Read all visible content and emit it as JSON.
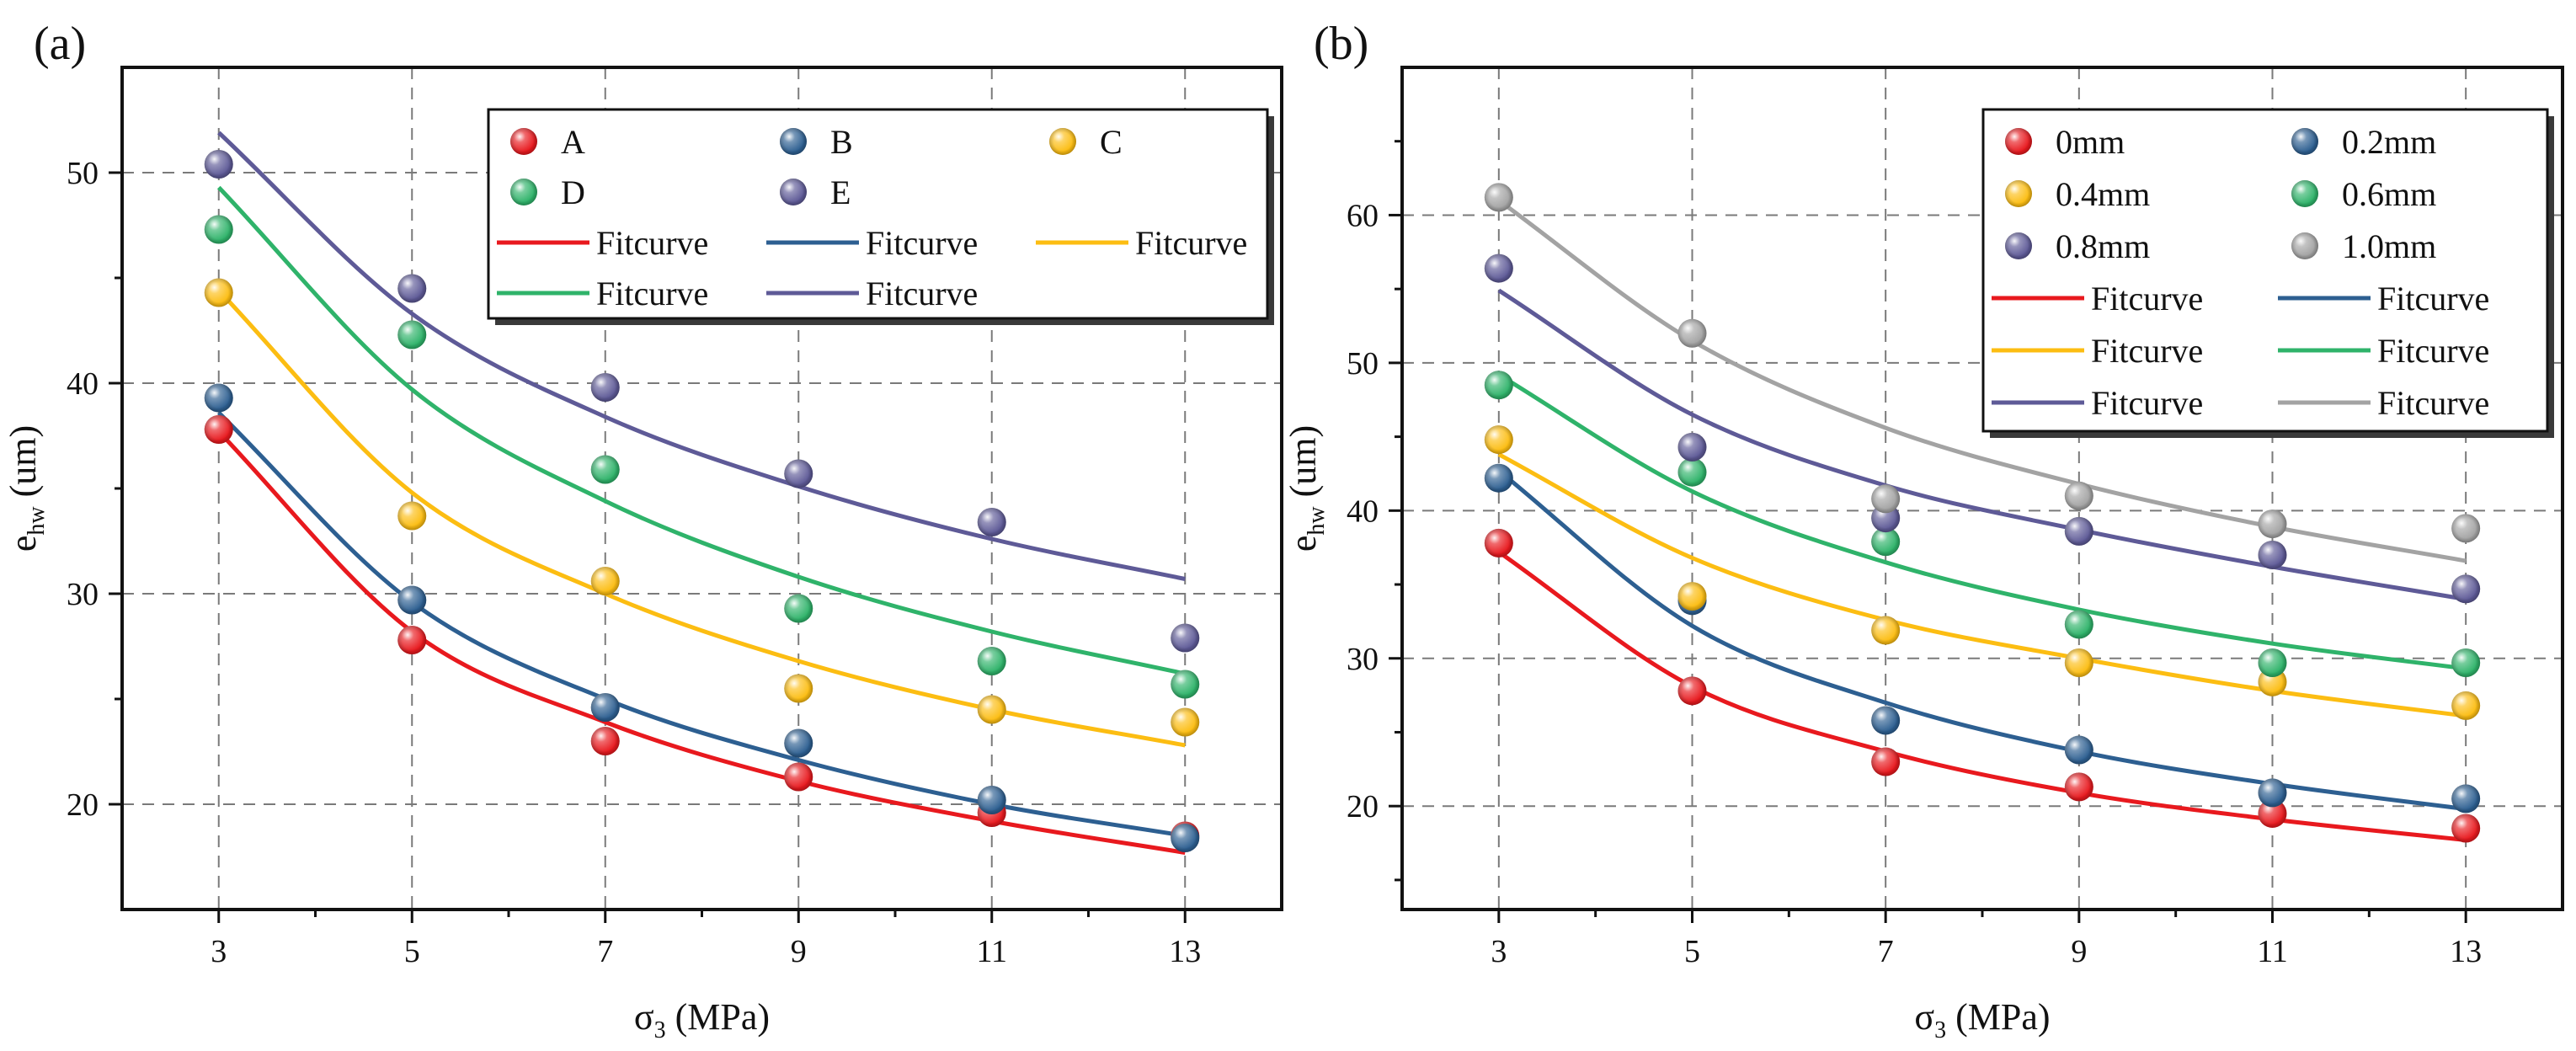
{
  "colors": {
    "red": "#e8191e",
    "blue": "#2d5f91",
    "yellow": "#fcbd12",
    "green": "#2fb36a",
    "purple": "#5e5a97",
    "gray": "#a3a3a3"
  },
  "chart_data": [
    {
      "type": "scatter",
      "panel_label": "(a)",
      "xlabel": "σ",
      "xlabel_sub": "3",
      "xlabel_unit": " (MPa)",
      "ylabel": "e",
      "ylabel_sub": "hw",
      "ylabel_unit": " (um)",
      "xlim": [
        2,
        14
      ],
      "ylim": [
        15,
        55
      ],
      "xticks": [
        3,
        5,
        7,
        9,
        11,
        13
      ],
      "yticks": [
        20,
        30,
        40,
        50
      ],
      "grid": true,
      "legend_placement": "top-right",
      "legend_columns": 3,
      "x": [
        3,
        5,
        7,
        9,
        11,
        13
      ],
      "series": [
        {
          "name": "A",
          "color_key": "red",
          "values": [
            37.8,
            27.8,
            23.0,
            21.3,
            19.6,
            18.5
          ],
          "fit": [
            37.7,
            28.2,
            23.9,
            21.1,
            19.2,
            17.7
          ]
        },
        {
          "name": "B",
          "color_key": "blue",
          "values": [
            39.3,
            29.7,
            24.6,
            22.9,
            20.2,
            18.4
          ],
          "fit": [
            38.6,
            29.6,
            25.0,
            22.1,
            20.0,
            18.5
          ]
        },
        {
          "name": "C",
          "color_key": "yellow",
          "values": [
            44.3,
            33.7,
            30.6,
            25.5,
            24.5,
            23.9
          ],
          "fit": [
            44.4,
            34.8,
            30.0,
            26.8,
            24.5,
            22.8
          ]
        },
        {
          "name": "D",
          "color_key": "green",
          "values": [
            47.3,
            42.3,
            35.9,
            29.3,
            26.8,
            25.7
          ],
          "fit": [
            49.3,
            39.7,
            34.4,
            30.8,
            28.2,
            26.2
          ]
        },
        {
          "name": "E",
          "color_key": "purple",
          "values": [
            50.4,
            44.5,
            39.8,
            35.7,
            33.4,
            27.9
          ],
          "fit": [
            51.9,
            43.3,
            38.4,
            35.1,
            32.6,
            30.7
          ]
        }
      ],
      "fit_label": "Fitcurve"
    },
    {
      "type": "scatter",
      "panel_label": "(b)",
      "xlabel": "σ",
      "xlabel_sub": "3",
      "xlabel_unit": " (MPa)",
      "ylabel": "e",
      "ylabel_sub": "hw",
      "ylabel_unit": " (um)",
      "xlim": [
        2,
        14
      ],
      "ylim": [
        13,
        70
      ],
      "xticks": [
        3,
        5,
        7,
        9,
        11,
        13
      ],
      "yticks": [
        20,
        30,
        40,
        50,
        60
      ],
      "grid": true,
      "legend_placement": "top-right",
      "legend_columns": 2,
      "x": [
        3,
        5,
        7,
        9,
        11,
        13
      ],
      "series": [
        {
          "name": "0mm",
          "color_key": "red",
          "values": [
            37.8,
            27.8,
            23.0,
            21.3,
            19.5,
            18.5
          ],
          "fit": [
            37.2,
            28.1,
            23.7,
            20.9,
            19.1,
            17.7
          ]
        },
        {
          "name": "0.2mm",
          "color_key": "blue",
          "values": [
            42.2,
            33.9,
            25.8,
            23.8,
            20.9,
            20.5
          ],
          "fit": [
            42.7,
            32.2,
            27.0,
            23.7,
            21.5,
            19.8
          ]
        },
        {
          "name": "0.4mm",
          "color_key": "yellow",
          "values": [
            44.8,
            34.2,
            31.9,
            29.7,
            28.4,
            26.8
          ],
          "fit": [
            43.8,
            36.8,
            32.6,
            30.0,
            27.8,
            26.1
          ]
        },
        {
          "name": "0.6mm",
          "color_key": "green",
          "values": [
            48.5,
            42.6,
            37.9,
            32.3,
            29.7,
            29.7
          ],
          "fit": [
            49.2,
            41.3,
            36.5,
            33.3,
            31.0,
            29.3
          ]
        },
        {
          "name": "0.8mm",
          "color_key": "purple",
          "values": [
            56.4,
            44.3,
            39.5,
            38.6,
            37.0,
            34.7
          ],
          "fit": [
            54.9,
            46.5,
            41.7,
            38.7,
            36.2,
            34.0
          ]
        },
        {
          "name": "1.0mm",
          "color_key": "gray",
          "values": [
            61.2,
            52.0,
            40.8,
            41.0,
            39.1,
            38.8
          ],
          "fit": [
            61.0,
            51.5,
            45.6,
            41.8,
            38.9,
            36.6
          ]
        }
      ],
      "fit_label": "Fitcurve"
    }
  ]
}
